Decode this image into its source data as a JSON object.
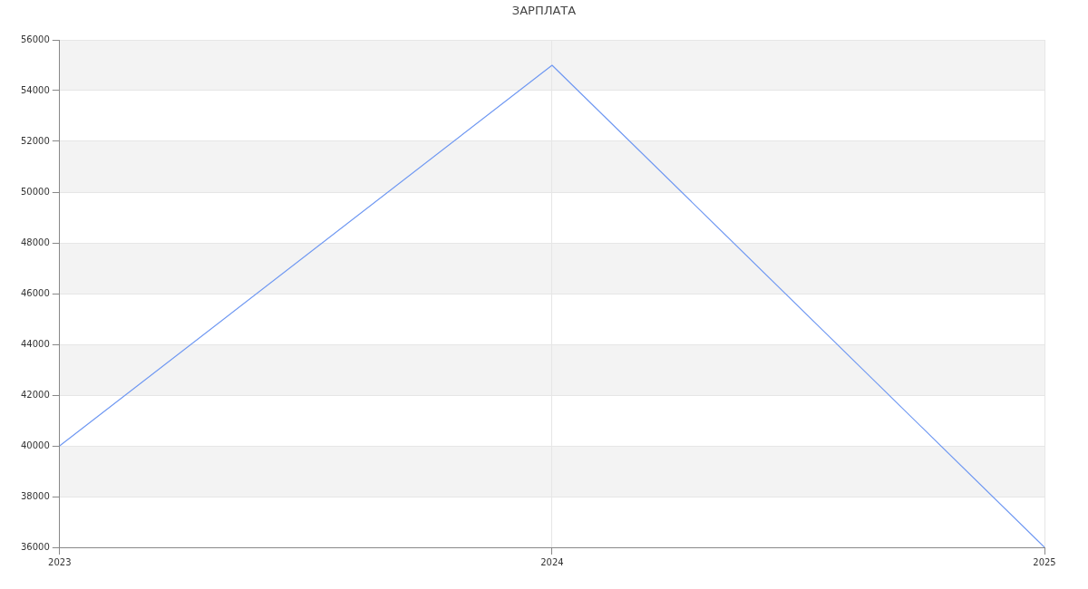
{
  "chart_data": {
    "type": "line",
    "title": "ЗАРПЛАТА",
    "categories": [
      "2023",
      "2024",
      "2025"
    ],
    "series": [
      {
        "color": "#6f98f2",
        "values": [
          40000,
          55000,
          36000
        ]
      }
    ],
    "ylim": [
      36000,
      56000
    ],
    "yticks": [
      36000,
      38000,
      40000,
      42000,
      44000,
      46000,
      48000,
      50000,
      52000,
      54000,
      56000
    ],
    "grid": true,
    "marker": "none",
    "legend": false
  }
}
